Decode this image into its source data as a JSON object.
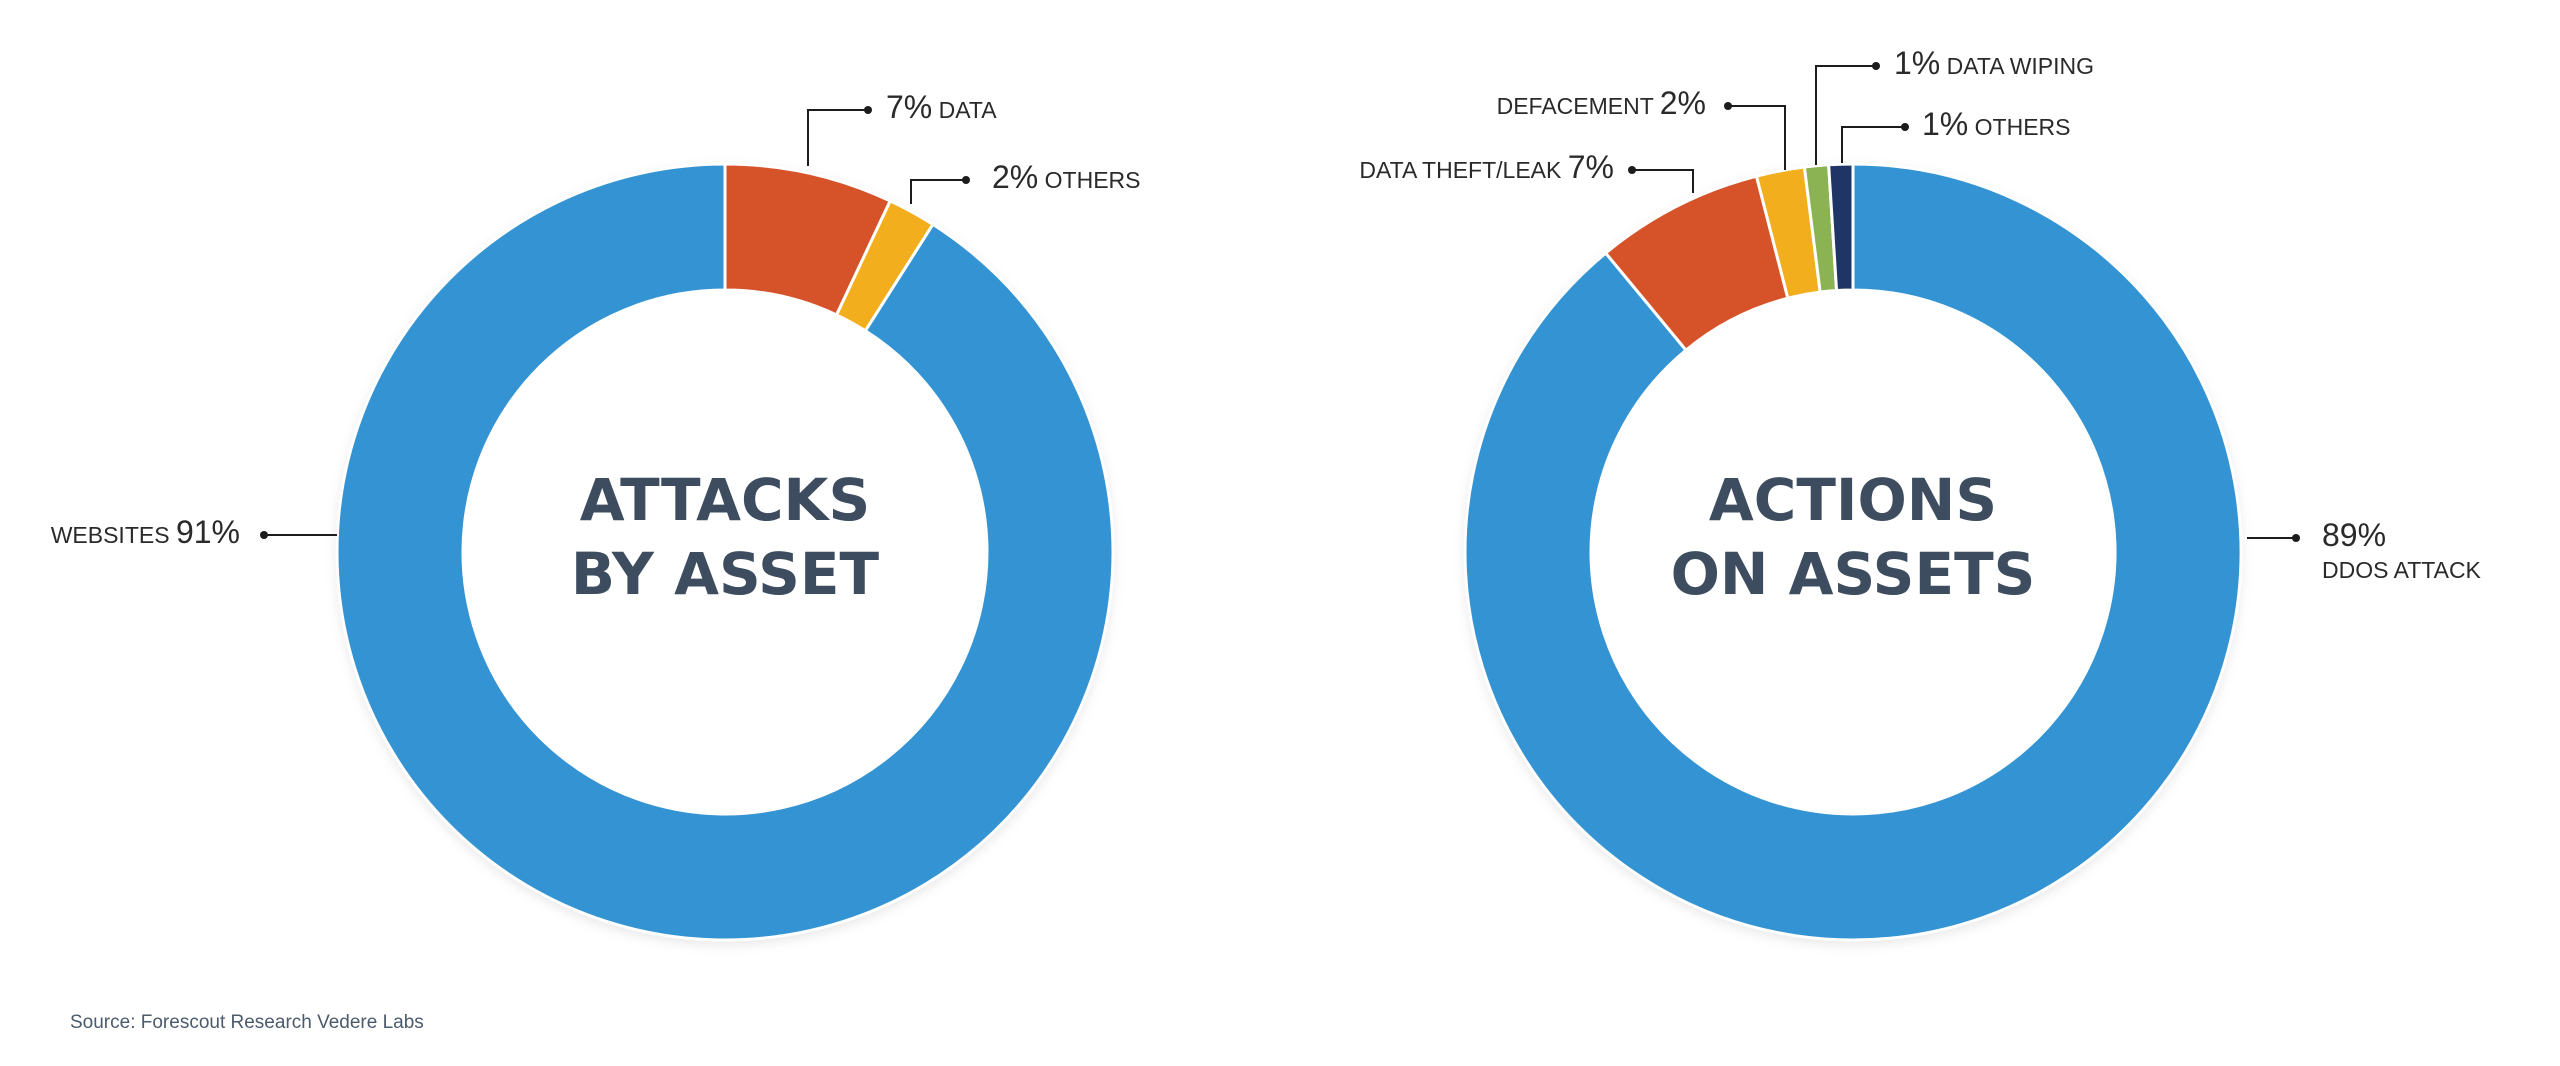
{
  "source": "Source: Forescout Research Vedere Labs",
  "colors": {
    "blue": "#3494d3",
    "orange": "#d6532a",
    "yellow": "#f2ae1c",
    "green": "#8bb253",
    "navy": "#1f3566",
    "center_text": "#3d4d5f",
    "label_text": "#2a2a2a",
    "leader": "#1c1c1c"
  },
  "chart_data": [
    {
      "type": "pie",
      "donut": true,
      "title_lines": [
        "ATTACKS",
        "BY ASSET"
      ],
      "slices": [
        {
          "label": "DATA",
          "percent_text": "7%",
          "value": 7,
          "color": "orange"
        },
        {
          "label": "OTHERS",
          "percent_text": "2%",
          "value": 2,
          "color": "yellow"
        },
        {
          "label": "WEBSITES",
          "percent_text": "91%",
          "value": 91,
          "color": "blue"
        }
      ]
    },
    {
      "type": "pie",
      "donut": true,
      "title_lines": [
        "ACTIONS",
        "ON ASSETS"
      ],
      "slices": [
        {
          "label": "DDOS ATTACK",
          "percent_text": "89%",
          "value": 89,
          "color": "blue"
        },
        {
          "label": "DATA THEFT/LEAK",
          "percent_text": "7%",
          "value": 7,
          "color": "orange"
        },
        {
          "label": "DEFACEMENT",
          "percent_text": "2%",
          "value": 2,
          "color": "yellow"
        },
        {
          "label": "DATA WIPING",
          "percent_text": "1%",
          "value": 1,
          "color": "green"
        },
        {
          "label": "OTHERS",
          "percent_text": "1%",
          "value": 1,
          "color": "navy"
        }
      ]
    }
  ]
}
